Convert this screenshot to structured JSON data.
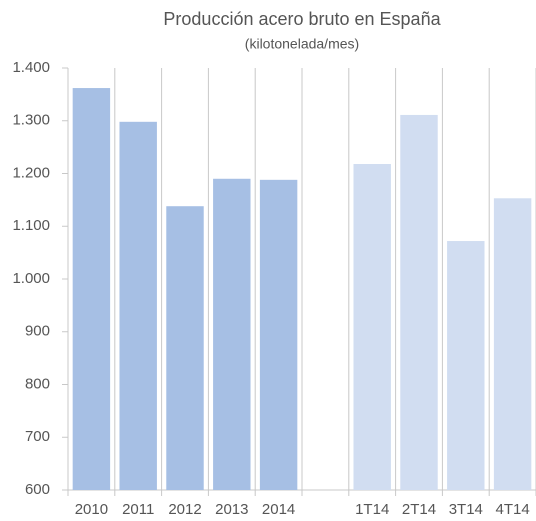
{
  "chart_data": {
    "type": "bar",
    "title": "Producción acero bruto en España",
    "subtitle": "(kilotonelada/mes)",
    "categories": [
      "2010",
      "2011",
      "2012",
      "2013",
      "2014",
      null,
      "1T14",
      "2T14",
      "3T14",
      "4T14"
    ],
    "values": [
      1362,
      1298,
      1138,
      1190,
      1188,
      null,
      1218,
      1311,
      1072,
      1153
    ],
    "colors": [
      "#a6bfe4",
      "#a6bfe4",
      "#a6bfe4",
      "#a6bfe4",
      "#a6bfe4",
      null,
      "#d1ddf1",
      "#d1ddf1",
      "#d1ddf1",
      "#d1ddf1"
    ],
    "ylim": [
      600,
      1400
    ],
    "yticks": [
      600,
      700,
      800,
      900,
      {
        "value": 1000,
        "label": "1.000"
      },
      {
        "value": 1100,
        "label": "1.100"
      },
      {
        "value": 1200,
        "label": "1.200"
      },
      {
        "value": 1300,
        "label": "1.300"
      },
      {
        "value": 1400,
        "label": "1.400"
      }
    ],
    "grid": false
  }
}
